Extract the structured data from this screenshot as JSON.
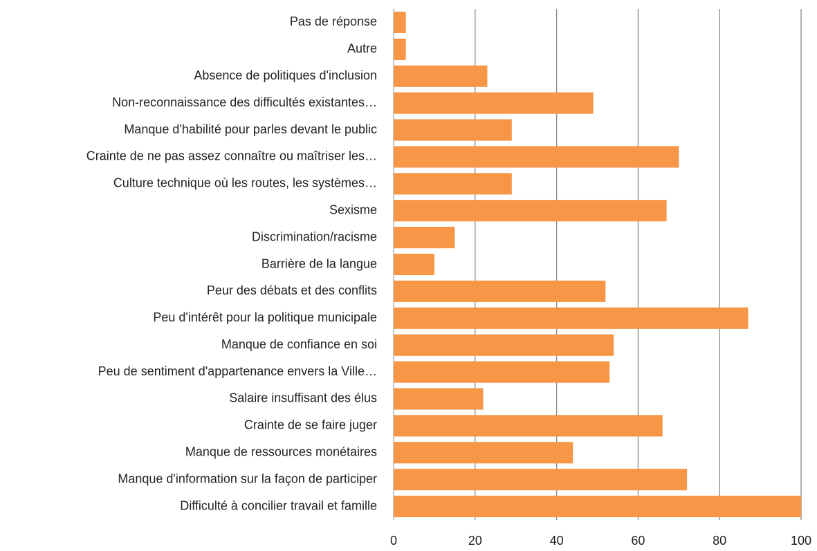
{
  "chart_data": {
    "type": "bar",
    "orientation": "horizontal",
    "categories": [
      "Pas de réponse",
      "Autre",
      "Absence de politiques d'inclusion",
      "Non-reconnaissance des difficultés existantes…",
      "Manque d'habilité pour parles devant le public",
      "Crainte de ne pas assez connaître ou maîtriser les…",
      "Culture technique où les routes, les systèmes…",
      "Sexisme",
      "Discrimination/racisme",
      "Barrière de la langue",
      "Peur des débats et des conflits",
      "Peu d'intérêt pour la politique municipale",
      "Manque de confiance en soi",
      "Peu de sentiment d'appartenance envers la Ville…",
      "Salaire insuffisant des élus",
      "Crainte de se faire juger",
      "Manque de ressources monétaires",
      "Manque d'information sur la façon de participer",
      "Difficulté à concilier travail et famille"
    ],
    "values": [
      3,
      3,
      23,
      49,
      29,
      70,
      29,
      67,
      15,
      10,
      52,
      87,
      54,
      53,
      22,
      66,
      44,
      72,
      100
    ],
    "color": "#f79646",
    "xlim": [
      0,
      100
    ],
    "xticks": [
      0,
      20,
      40,
      60,
      80,
      100
    ],
    "grid": true
  }
}
